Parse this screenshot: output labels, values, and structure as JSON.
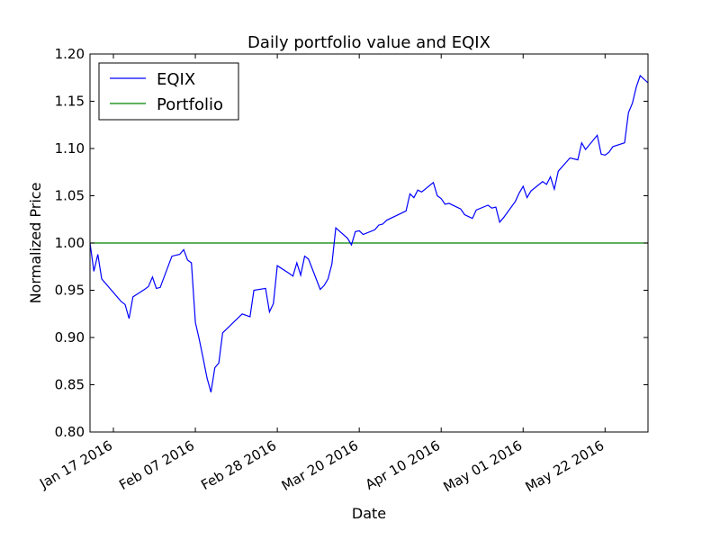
{
  "chart_data": {
    "type": "line",
    "title": "Daily portfolio value and EQIX",
    "xlabel": "Date",
    "ylabel": "Normalized Price",
    "xlim": [
      "2016-01-11",
      "2016-06-02"
    ],
    "ylim": [
      0.8,
      1.2
    ],
    "yticks": [
      "0.80",
      "0.85",
      "0.90",
      "0.95",
      "1.00",
      "1.05",
      "1.10",
      "1.15",
      "1.20"
    ],
    "xticks": [
      {
        "date": "2016-01-17",
        "label": "Jan 17 2016"
      },
      {
        "date": "2016-02-07",
        "label": "Feb 07 2016"
      },
      {
        "date": "2016-02-28",
        "label": "Feb 28 2016"
      },
      {
        "date": "2016-03-20",
        "label": "Mar 20 2016"
      },
      {
        "date": "2016-04-10",
        "label": "Apr 10 2016"
      },
      {
        "date": "2016-05-01",
        "label": "May 01 2016"
      },
      {
        "date": "2016-05-22",
        "label": "May 22 2016"
      }
    ],
    "legend": {
      "position": "top-left"
    },
    "series": [
      {
        "name": "EQIX",
        "color": "#0000ff",
        "points": [
          [
            "2016-01-11",
            1.0
          ],
          [
            "2016-01-12",
            0.97
          ],
          [
            "2016-01-13",
            0.988
          ],
          [
            "2016-01-14",
            0.962
          ],
          [
            "2016-01-19",
            0.938
          ],
          [
            "2016-01-20",
            0.935
          ],
          [
            "2016-01-21",
            0.92
          ],
          [
            "2016-01-22",
            0.943
          ],
          [
            "2016-01-25",
            0.951
          ],
          [
            "2016-01-26",
            0.954
          ],
          [
            "2016-01-27",
            0.964
          ],
          [
            "2016-01-28",
            0.952
          ],
          [
            "2016-01-29",
            0.953
          ],
          [
            "2016-02-01",
            0.986
          ],
          [
            "2016-02-02",
            0.987
          ],
          [
            "2016-02-03",
            0.988
          ],
          [
            "2016-02-04",
            0.993
          ],
          [
            "2016-02-05",
            0.982
          ],
          [
            "2016-02-06",
            0.979
          ],
          [
            "2016-02-07",
            0.916
          ],
          [
            "2016-02-08",
            0.898
          ],
          [
            "2016-02-09",
            0.878
          ],
          [
            "2016-02-10",
            0.857
          ],
          [
            "2016-02-11",
            0.842
          ],
          [
            "2016-02-12",
            0.868
          ],
          [
            "2016-02-13",
            0.873
          ],
          [
            "2016-02-14",
            0.905
          ],
          [
            "2016-02-19",
            0.925
          ],
          [
            "2016-02-21",
            0.922
          ],
          [
            "2016-02-22",
            0.95
          ],
          [
            "2016-02-25",
            0.952
          ],
          [
            "2016-02-26",
            0.927
          ],
          [
            "2016-02-27",
            0.936
          ],
          [
            "2016-02-28",
            0.976
          ],
          [
            "2016-03-02",
            0.968
          ],
          [
            "2016-03-03",
            0.965
          ],
          [
            "2016-03-04",
            0.979
          ],
          [
            "2016-03-05",
            0.966
          ],
          [
            "2016-03-06",
            0.986
          ],
          [
            "2016-03-07",
            0.983
          ],
          [
            "2016-03-10",
            0.951
          ],
          [
            "2016-03-11",
            0.955
          ],
          [
            "2016-03-12",
            0.962
          ],
          [
            "2016-03-13",
            0.978
          ],
          [
            "2016-03-14",
            1.016
          ],
          [
            "2016-03-17",
            1.005
          ],
          [
            "2016-03-18",
            0.998
          ],
          [
            "2016-03-19",
            1.012
          ],
          [
            "2016-03-20",
            1.013
          ],
          [
            "2016-03-21",
            1.009
          ],
          [
            "2016-03-24",
            1.014
          ],
          [
            "2016-03-25",
            1.019
          ],
          [
            "2016-03-26",
            1.02
          ],
          [
            "2016-03-27",
            1.024
          ],
          [
            "2016-03-31",
            1.032
          ],
          [
            "2016-04-01",
            1.034
          ],
          [
            "2016-04-02",
            1.052
          ],
          [
            "2016-04-03",
            1.048
          ],
          [
            "2016-04-04",
            1.056
          ],
          [
            "2016-04-05",
            1.054
          ],
          [
            "2016-04-08",
            1.064
          ],
          [
            "2016-04-09",
            1.05
          ],
          [
            "2016-04-10",
            1.047
          ],
          [
            "2016-04-11",
            1.041
          ],
          [
            "2016-04-12",
            1.042
          ],
          [
            "2016-04-15",
            1.036
          ],
          [
            "2016-04-16",
            1.03
          ],
          [
            "2016-04-18",
            1.026
          ],
          [
            "2016-04-19",
            1.035
          ],
          [
            "2016-04-22",
            1.04
          ],
          [
            "2016-04-23",
            1.037
          ],
          [
            "2016-04-24",
            1.038
          ],
          [
            "2016-04-25",
            1.022
          ],
          [
            "2016-04-26",
            1.027
          ],
          [
            "2016-04-29",
            1.044
          ],
          [
            "2016-04-30",
            1.053
          ],
          [
            "2016-05-01",
            1.06
          ],
          [
            "2016-05-02",
            1.048
          ],
          [
            "2016-05-03",
            1.055
          ],
          [
            "2016-05-06",
            1.065
          ],
          [
            "2016-05-07",
            1.062
          ],
          [
            "2016-05-08",
            1.07
          ],
          [
            "2016-05-09",
            1.057
          ],
          [
            "2016-05-10",
            1.076
          ],
          [
            "2016-05-13",
            1.09
          ],
          [
            "2016-05-15",
            1.088
          ],
          [
            "2016-05-16",
            1.106
          ],
          [
            "2016-05-17",
            1.099
          ],
          [
            "2016-05-20",
            1.114
          ],
          [
            "2016-05-21",
            1.094
          ],
          [
            "2016-05-22",
            1.093
          ],
          [
            "2016-05-23",
            1.096
          ],
          [
            "2016-05-24",
            1.102
          ],
          [
            "2016-05-27",
            1.106
          ],
          [
            "2016-05-28",
            1.138
          ],
          [
            "2016-05-29",
            1.148
          ],
          [
            "2016-05-30",
            1.165
          ],
          [
            "2016-05-31",
            1.177
          ],
          [
            "2016-06-04",
            1.162
          ],
          [
            "2016-06-05",
            1.177
          ]
        ]
      },
      {
        "name": "Portfolio",
        "color": "#008000",
        "points": [
          [
            "2016-01-11",
            1.0
          ],
          [
            "2016-06-05",
            1.0
          ]
        ]
      }
    ]
  }
}
